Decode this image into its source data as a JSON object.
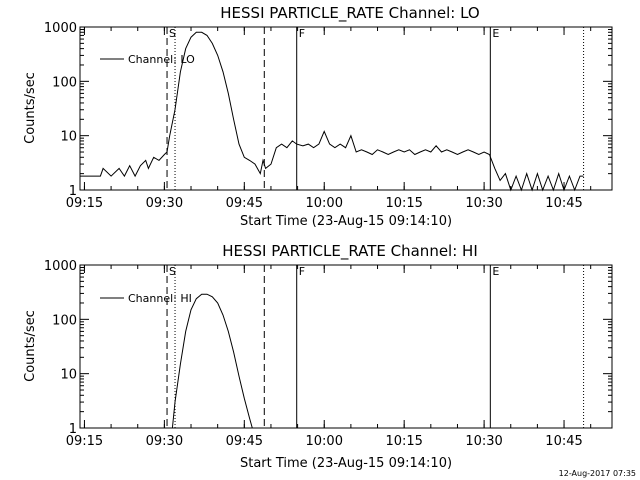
{
  "footer": {
    "timestamp": "12-Aug-2017 07:35"
  },
  "chart_data": [
    {
      "type": "line",
      "title": "HESSI PARTICLE_RATE Channel: LO",
      "xlabel": "Start Time (23-Aug-15 09:14:10)",
      "ylabel": "Counts/sec",
      "yscale": "log",
      "ylim": [
        1,
        1000
      ],
      "xlim": [
        "09:14:10",
        "10:54:00"
      ],
      "xticks": [
        "09:15",
        "09:30",
        "09:45",
        "10:00",
        "10:15",
        "10:30",
        "10:45"
      ],
      "yticks": [
        "1",
        "10",
        "100",
        "1000"
      ],
      "legend": "top-left",
      "markers": [
        {
          "label": "S",
          "time": "09:30:30",
          "style": "dashed"
        },
        {
          "label": "",
          "time": "09:32:00",
          "style": "dotted"
        },
        {
          "label": "",
          "time": "09:48:45",
          "style": "dashed"
        },
        {
          "label": "F",
          "time": "09:54:50",
          "style": "solid"
        },
        {
          "label": "E",
          "time": "10:31:10",
          "style": "solid"
        },
        {
          "label": "",
          "time": "10:48:40",
          "style": "dotted"
        }
      ],
      "series": [
        {
          "name": "Channel: LO",
          "x": [
            "09:14:10",
            "09:18:00",
            "09:18:30",
            "09:20:00",
            "09:21:30",
            "09:22:30",
            "09:23:30",
            "09:24:30",
            "09:25:30",
            "09:26:30",
            "09:27:00",
            "09:28:00",
            "09:29:00",
            "09:30:00",
            "09:30:30",
            "09:31:00",
            "09:32:00",
            "09:33:00",
            "09:34:00",
            "09:35:00",
            "09:36:00",
            "09:37:00",
            "09:38:00",
            "09:39:00",
            "09:40:00",
            "09:41:00",
            "09:42:00",
            "09:43:00",
            "09:44:00",
            "09:45:00",
            "09:46:00",
            "09:47:00",
            "09:48:00",
            "09:48:30",
            "09:49:00",
            "09:50:00",
            "09:51:00",
            "09:52:00",
            "09:53:00",
            "09:54:00",
            "09:54:50",
            "09:56:00",
            "09:57:00",
            "09:58:00",
            "09:59:00",
            "10:00:00",
            "10:01:00",
            "10:02:00",
            "10:03:00",
            "10:04:00",
            "10:05:00",
            "10:06:00",
            "10:07:00",
            "10:08:00",
            "10:09:00",
            "10:10:00",
            "10:11:00",
            "10:12:00",
            "10:13:00",
            "10:14:00",
            "10:15:00",
            "10:16:00",
            "10:17:00",
            "10:18:00",
            "10:19:00",
            "10:20:00",
            "10:21:00",
            "10:22:00",
            "10:23:00",
            "10:24:00",
            "10:25:00",
            "10:26:00",
            "10:27:00",
            "10:28:00",
            "10:29:00",
            "10:30:00",
            "10:31:00",
            "10:32:00",
            "10:33:00",
            "10:34:00",
            "10:35:00",
            "10:36:00",
            "10:37:00",
            "10:38:00",
            "10:39:00",
            "10:40:00",
            "10:41:00",
            "10:42:00",
            "10:43:00",
            "10:44:00",
            "10:45:00",
            "10:46:00",
            "10:47:00",
            "10:48:00",
            "10:48:40"
          ],
          "y": [
            1.8,
            1.8,
            2.5,
            1.8,
            2.5,
            1.8,
            2.8,
            1.8,
            2.8,
            3.5,
            2.5,
            4,
            3.5,
            4.5,
            5,
            10,
            30,
            150,
            400,
            650,
            800,
            800,
            700,
            500,
            300,
            150,
            60,
            20,
            7,
            4,
            3.5,
            3,
            2,
            3.5,
            2.5,
            3,
            6,
            7,
            6,
            8,
            7,
            6.5,
            7,
            6,
            7,
            12,
            7,
            6,
            7,
            6,
            10,
            5,
            5.5,
            5,
            4.5,
            5.5,
            5,
            4.5,
            5,
            5.5,
            5,
            5.5,
            4.5,
            5,
            5.5,
            5,
            6.5,
            5,
            5.5,
            5,
            4.5,
            5,
            5.5,
            5,
            4.5,
            5,
            4.5,
            2.5,
            1.5,
            2,
            1,
            1.8,
            1,
            2,
            1,
            2,
            1,
            1.8,
            1,
            2,
            1,
            1.8,
            1,
            1.8,
            1.8
          ]
        }
      ]
    },
    {
      "type": "line",
      "title": "HESSI PARTICLE_RATE Channel: HI",
      "xlabel": "Start Time (23-Aug-15 09:14:10)",
      "ylabel": "Counts/sec",
      "yscale": "log",
      "ylim": [
        1,
        1000
      ],
      "xlim": [
        "09:14:10",
        "10:54:00"
      ],
      "xticks": [
        "09:15",
        "09:30",
        "09:45",
        "10:00",
        "10:15",
        "10:30",
        "10:45"
      ],
      "yticks": [
        "1",
        "10",
        "100",
        "1000"
      ],
      "legend": "top-left",
      "markers": [
        {
          "label": "S",
          "time": "09:30:30",
          "style": "dashed"
        },
        {
          "label": "",
          "time": "09:32:00",
          "style": "dotted"
        },
        {
          "label": "",
          "time": "09:48:45",
          "style": "dashed"
        },
        {
          "label": "F",
          "time": "09:54:50",
          "style": "solid"
        },
        {
          "label": "E",
          "time": "10:31:10",
          "style": "solid"
        },
        {
          "label": "",
          "time": "10:48:40",
          "style": "dotted"
        }
      ],
      "series": [
        {
          "name": "Channel: HI",
          "x": [
            "09:31:30",
            "09:32:00",
            "09:33:00",
            "09:34:00",
            "09:35:00",
            "09:36:00",
            "09:37:00",
            "09:38:00",
            "09:39:00",
            "09:40:00",
            "09:41:00",
            "09:42:00",
            "09:43:00",
            "09:44:00",
            "09:45:00",
            "09:46:00",
            "09:46:30"
          ],
          "y": [
            1,
            3,
            15,
            60,
            150,
            240,
            290,
            290,
            260,
            200,
            120,
            60,
            25,
            9,
            3.5,
            1.5,
            1
          ]
        }
      ]
    }
  ]
}
